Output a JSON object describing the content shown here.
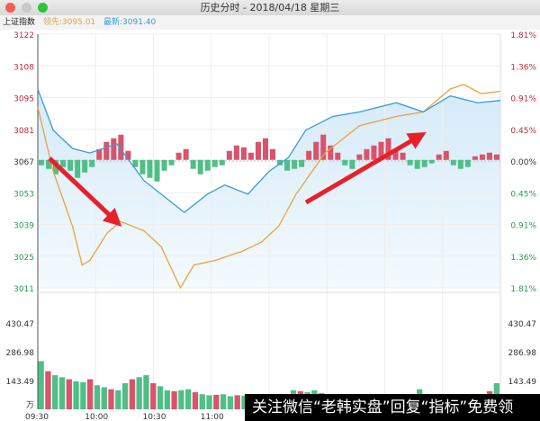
{
  "window": {
    "title": "历史分时 - 2018/04/18 星期三",
    "controls": [
      "close",
      "minimize",
      "maximize"
    ]
  },
  "info": {
    "index_name": "上证指数",
    "leading_label": "领先:3095.01",
    "latest_label": "最新:3091.40"
  },
  "colors": {
    "price_line": "#e8a33a",
    "avg_line": "#3a9ad9",
    "up": "#d9536a",
    "down": "#4fbf86",
    "arrow": "#e8202a"
  },
  "watermark": "关注微信“老韩实盘”回复“指标”免费领",
  "chart_data": {
    "type": "line",
    "price_ticks": [
      "3122",
      "3108",
      "3095",
      "3081",
      "3067",
      "3053",
      "3039",
      "3025",
      "3011"
    ],
    "pct_ticks": [
      "1.81%",
      "1.36%",
      "0.91%",
      "0.45%",
      "0.00%",
      "0.45%",
      "0.91%",
      "1.36%",
      "1.81%"
    ],
    "ylim": [
      3011,
      3122
    ],
    "volume_ticks": [
      "430.47",
      "286.98",
      "143.49"
    ],
    "volume_unit": "万",
    "time_ticks": [
      "09:30",
      "10:00",
      "10:30",
      "11:00"
    ],
    "series": [
      {
        "key": "price",
        "points": [
          [
            "09:30",
            3090
          ],
          [
            "09:38",
            3062
          ],
          [
            "09:48",
            3038
          ],
          [
            "09:53",
            3021
          ],
          [
            "09:57",
            3023
          ],
          [
            "10:06",
            3035
          ],
          [
            "10:13",
            3040
          ],
          [
            "10:25",
            3036
          ],
          [
            "10:34",
            3029
          ],
          [
            "10:44",
            3011
          ],
          [
            "10:51",
            3021
          ],
          [
            "11:02",
            3023
          ],
          [
            "11:16",
            3027
          ],
          [
            "11:26",
            3031
          ],
          [
            "13:05",
            3038
          ],
          [
            "13:14",
            3052
          ],
          [
            "13:29",
            3070
          ],
          [
            "13:47",
            3082
          ],
          [
            "14:06",
            3086
          ],
          [
            "14:20",
            3088
          ],
          [
            "14:34",
            3098
          ],
          [
            "14:41",
            3100
          ],
          [
            "14:50",
            3096
          ],
          [
            "15:00",
            3097
          ]
        ]
      },
      {
        "key": "avg",
        "points": [
          [
            "09:30",
            3098
          ],
          [
            "09:38",
            3080
          ],
          [
            "09:48",
            3072
          ],
          [
            "09:57",
            3070
          ],
          [
            "10:11",
            3074
          ],
          [
            "10:25",
            3058
          ],
          [
            "10:37",
            3050
          ],
          [
            "10:46",
            3044
          ],
          [
            "10:58",
            3052
          ],
          [
            "11:07",
            3056
          ],
          [
            "11:19",
            3052
          ],
          [
            "13:00",
            3062
          ],
          [
            "13:10",
            3068
          ],
          [
            "13:19",
            3080
          ],
          [
            "13:33",
            3086
          ],
          [
            "13:47",
            3088
          ],
          [
            "14:06",
            3092
          ],
          [
            "14:20",
            3088
          ],
          [
            "14:34",
            3095
          ],
          [
            "14:48",
            3092
          ],
          [
            "15:00",
            3093
          ]
        ]
      }
    ],
    "momentum": [
      -3,
      -5,
      -8,
      -4,
      -6,
      -10,
      -7,
      -4,
      6,
      10,
      12,
      14,
      5,
      -4,
      -8,
      -10,
      -12,
      -6,
      -3,
      4,
      6,
      -5,
      -8,
      -6,
      -4,
      -3,
      5,
      8,
      7,
      4,
      10,
      12,
      6,
      -3,
      -6,
      -5,
      -4,
      5,
      10,
      14,
      8,
      4,
      -3,
      -5,
      3,
      6,
      8,
      10,
      12,
      6,
      4,
      -3,
      -5,
      -4,
      -2,
      3,
      5,
      -3,
      -5,
      -4,
      2,
      3,
      4,
      3
    ],
    "volume": [
      240,
      190,
      170,
      160,
      150,
      140,
      135,
      150,
      120,
      110,
      100,
      95,
      130,
      150,
      160,
      170,
      130,
      115,
      95,
      90,
      95,
      100,
      85,
      75,
      70,
      72,
      75,
      65,
      70,
      68,
      60,
      62,
      70,
      65,
      60,
      75,
      95,
      90,
      85,
      95,
      80,
      70,
      60,
      55,
      70,
      65,
      55,
      50,
      45,
      50,
      40,
      42,
      45,
      40,
      100,
      45,
      50,
      55,
      48,
      50,
      45,
      55,
      60,
      70,
      90,
      130
    ]
  }
}
